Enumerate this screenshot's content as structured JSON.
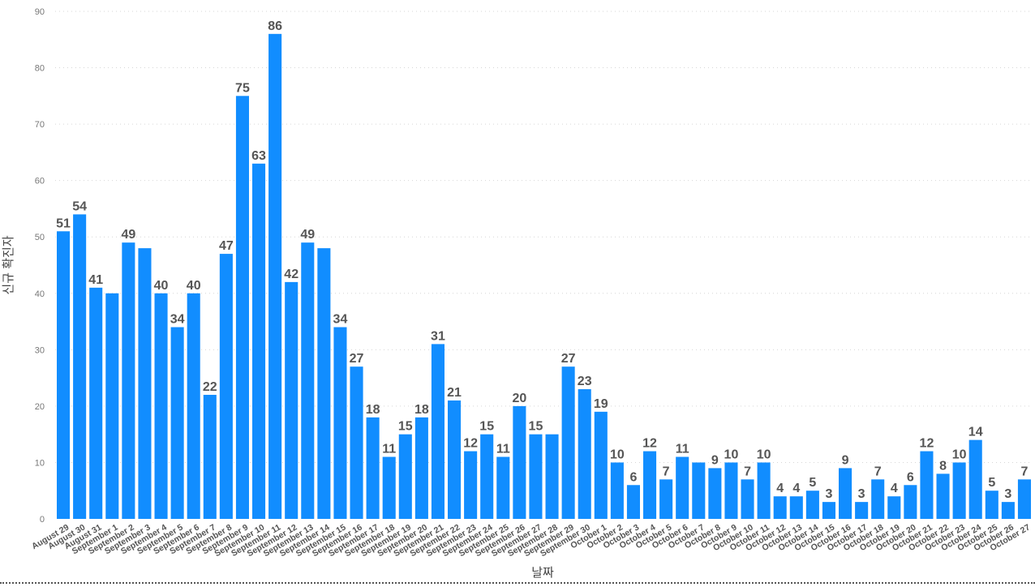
{
  "chart_data": {
    "type": "bar",
    "xlabel": "날짜",
    "ylabel": "신규 확진자",
    "ylim": [
      0,
      90
    ],
    "yticks": [
      0,
      10,
      20,
      30,
      40,
      50,
      60,
      70,
      80,
      90
    ],
    "grid": true,
    "bar_color": "#118DFF",
    "categories": [
      "August 29",
      "August 30",
      "August 31",
      "September 1",
      "September 2",
      "September 3",
      "September 4",
      "September 5",
      "September 6",
      "September 7",
      "September 8",
      "September 9",
      "September 10",
      "September 11",
      "September 12",
      "September 13",
      "September 14",
      "September 15",
      "September 16",
      "September 17",
      "September 18",
      "September 19",
      "September 20",
      "September 21",
      "September 22",
      "September 23",
      "September 24",
      "September 25",
      "September 26",
      "September 27",
      "September 28",
      "September 29",
      "September 30",
      "October 1",
      "October 2",
      "October 3",
      "October 4",
      "October 5",
      "October 6",
      "October 7",
      "October 8",
      "October 9",
      "October 10",
      "October 11",
      "October 12",
      "October 13",
      "October 14",
      "October 15",
      "October 16",
      "October 17",
      "October 18",
      "October 19",
      "October 20",
      "October 21",
      "October 22",
      "October 23",
      "October 24",
      "October 25",
      "October 26",
      "October 27"
    ],
    "values": [
      51,
      54,
      41,
      40,
      49,
      48,
      40,
      34,
      40,
      22,
      47,
      75,
      63,
      86,
      42,
      49,
      48,
      34,
      27,
      18,
      11,
      15,
      18,
      31,
      21,
      12,
      15,
      11,
      20,
      15,
      15,
      27,
      23,
      19,
      10,
      6,
      12,
      7,
      11,
      10,
      9,
      10,
      7,
      10,
      4,
      4,
      5,
      3,
      9,
      3,
      7,
      4,
      6,
      12,
      8,
      10,
      14,
      5,
      3,
      7
    ],
    "data_labels": [
      "51",
      "54",
      "41",
      "",
      "49",
      "",
      "40",
      "34",
      "40",
      "22",
      "47",
      "75",
      "63",
      "86",
      "42",
      "49",
      "",
      "34",
      "27",
      "18",
      "11",
      "15",
      "18",
      "31",
      "21",
      "12",
      "15",
      "11",
      "20",
      "15",
      "",
      "27",
      "23",
      "19",
      "10",
      "6",
      "12",
      "7",
      "11",
      "",
      "9",
      "10",
      "7",
      "10",
      "4",
      "4",
      "5",
      "3",
      "9",
      "3",
      "7",
      "4",
      "6",
      "12",
      "8",
      "10",
      "14",
      "5",
      "3",
      "7"
    ]
  }
}
